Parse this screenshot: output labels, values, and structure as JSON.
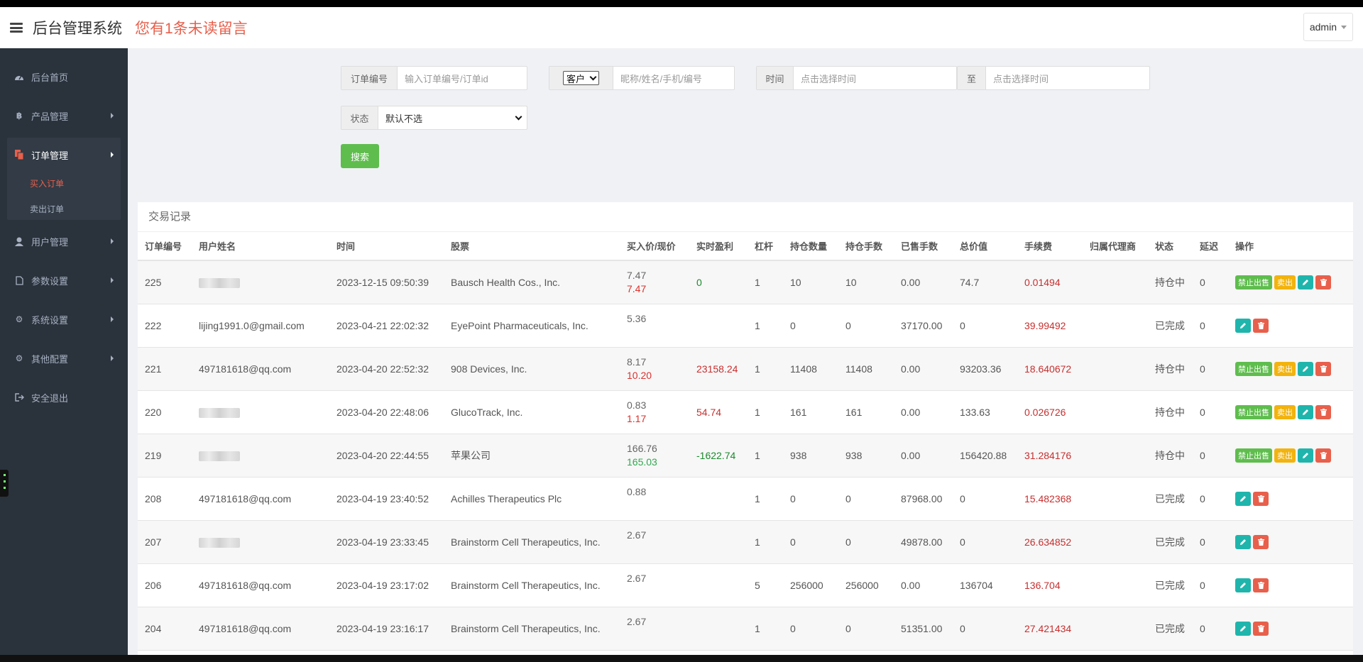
{
  "header": {
    "title": "后台管理系统",
    "notice": "您有1条未读留言",
    "user": "admin"
  },
  "sidebar": {
    "items": [
      {
        "label": "后台首页",
        "icon": "dashboard-icon"
      },
      {
        "label": "产品管理",
        "icon": "bitcoin-icon"
      },
      {
        "label": "订单管理",
        "icon": "copy-icon"
      },
      {
        "label": "用户管理",
        "icon": "user-icon"
      },
      {
        "label": "参数设置",
        "icon": "file-icon"
      },
      {
        "label": "系统设置",
        "icon": "gears-icon"
      },
      {
        "label": "其他配置",
        "icon": "gear-icon"
      },
      {
        "label": "安全退出",
        "icon": "sign-out-icon"
      }
    ],
    "sub_items": [
      "买入订单",
      "卖出订单"
    ]
  },
  "filters": {
    "order_label": "订单编号",
    "order_placeholder": "输入订单编号/订单id",
    "customer_select": "客户",
    "customer_placeholder": "昵称/姓名/手机/编号",
    "time_label": "时间",
    "time_placeholder": "点击选择时间",
    "to_label": "至",
    "to_placeholder": "点击选择时间",
    "status_label": "状态",
    "status_value": "默认不选",
    "search_button": "搜索"
  },
  "panel": {
    "title": "交易记录",
    "columns": [
      "订单编号",
      "用户姓名",
      "时间",
      "股票",
      "买入价/现价",
      "实时盈利",
      "杠杆",
      "持仓数量",
      "持仓手数",
      "已售手数",
      "总价值",
      "手续费",
      "归属代理商",
      "状态",
      "延迟",
      "操作"
    ],
    "buttons": {
      "stop": "禁止出售",
      "sell": "卖出"
    },
    "rows": [
      {
        "id": "225",
        "user": "",
        "time": "2023-12-15 09:50:39",
        "stock": "Bausch Health Cos., Inc.",
        "buy": "7.47",
        "cur": "7.47",
        "cur_color": "red",
        "pnl": "0",
        "pnl_color": "green",
        "lev": "1",
        "qty": "10",
        "lots": "10",
        "sold": "0.00",
        "total": "74.7",
        "fee": "0.01494",
        "agent": "",
        "status": "持仓中",
        "delay": "0",
        "holding": true
      },
      {
        "id": "222",
        "user": "lijing1991.0@gmail.com",
        "time": "2023-04-21 22:02:32",
        "stock": "EyePoint Pharmaceuticals, Inc.",
        "buy": "5.36",
        "cur": "",
        "cur_color": "red",
        "pnl": "",
        "pnl_color": "red",
        "lev": "1",
        "qty": "0",
        "lots": "0",
        "sold": "37170.00",
        "total": "0",
        "fee": "39.99492",
        "agent": "",
        "status": "已完成",
        "delay": "0",
        "holding": false
      },
      {
        "id": "221",
        "user": "497181618@qq.com",
        "time": "2023-04-20 22:52:32",
        "stock": "908 Devices, Inc.",
        "buy": "8.17",
        "cur": "10.20",
        "cur_color": "red",
        "pnl": "23158.24",
        "pnl_color": "red",
        "lev": "1",
        "qty": "11408",
        "lots": "11408",
        "sold": "0.00",
        "total": "93203.36",
        "fee": "18.640672",
        "agent": "",
        "status": "持仓中",
        "delay": "0",
        "holding": true
      },
      {
        "id": "220",
        "user": "",
        "time": "2023-04-20 22:48:06",
        "stock": "GlucoTrack, Inc.",
        "buy": "0.83",
        "cur": "1.17",
        "cur_color": "red",
        "pnl": "54.74",
        "pnl_color": "red",
        "lev": "1",
        "qty": "161",
        "lots": "161",
        "sold": "0.00",
        "total": "133.63",
        "fee": "0.026726",
        "agent": "",
        "status": "持仓中",
        "delay": "0",
        "holding": true
      },
      {
        "id": "219",
        "user": "",
        "time": "2023-04-20 22:44:55",
        "stock": "苹果公司",
        "buy": "166.76",
        "cur": "165.03",
        "cur_color": "green",
        "pnl": "-1622.74",
        "pnl_color": "green",
        "lev": "1",
        "qty": "938",
        "lots": "938",
        "sold": "0.00",
        "total": "156420.88",
        "fee": "31.284176",
        "agent": "",
        "status": "持仓中",
        "delay": "0",
        "holding": true
      },
      {
        "id": "208",
        "user": "497181618@qq.com",
        "time": "2023-04-19 23:40:52",
        "stock": "Achilles Therapeutics Plc",
        "buy": "0.88",
        "cur": "",
        "cur_color": "red",
        "pnl": "",
        "pnl_color": "red",
        "lev": "1",
        "qty": "0",
        "lots": "0",
        "sold": "87968.00",
        "total": "0",
        "fee": "15.482368",
        "agent": "",
        "status": "已完成",
        "delay": "0",
        "holding": false
      },
      {
        "id": "207",
        "user": "",
        "time": "2023-04-19 23:33:45",
        "stock": "Brainstorm Cell Therapeutics, Inc.",
        "buy": "2.67",
        "cur": "",
        "cur_color": "red",
        "pnl": "",
        "pnl_color": "red",
        "lev": "1",
        "qty": "0",
        "lots": "0",
        "sold": "49878.00",
        "total": "0",
        "fee": "26.634852",
        "agent": "",
        "status": "已完成",
        "delay": "0",
        "holding": false
      },
      {
        "id": "206",
        "user": "497181618@qq.com",
        "time": "2023-04-19 23:17:02",
        "stock": "Brainstorm Cell Therapeutics, Inc.",
        "buy": "2.67",
        "cur": "",
        "cur_color": "red",
        "pnl": "",
        "pnl_color": "red",
        "lev": "5",
        "qty": "256000",
        "lots": "256000",
        "sold": "0.00",
        "total": "136704",
        "fee": "136.704",
        "agent": "",
        "status": "已完成",
        "delay": "0",
        "holding": false
      },
      {
        "id": "204",
        "user": "497181618@qq.com",
        "time": "2023-04-19 23:16:17",
        "stock": "Brainstorm Cell Therapeutics, Inc.",
        "buy": "2.67",
        "cur": "",
        "cur_color": "red",
        "pnl": "",
        "pnl_color": "red",
        "lev": "1",
        "qty": "0",
        "lots": "0",
        "sold": "51351.00",
        "total": "0",
        "fee": "27.421434",
        "agent": "",
        "status": "已完成",
        "delay": "0",
        "holding": false
      }
    ]
  }
}
